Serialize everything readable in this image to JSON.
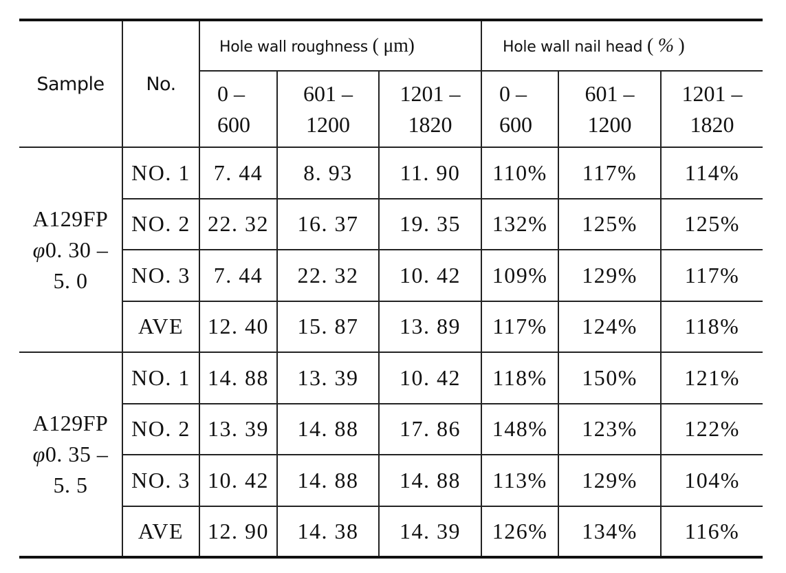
{
  "table": {
    "headers": {
      "sample": "Sample",
      "no": "No.",
      "roughness_group": "Hole wall roughness",
      "roughness_unit_open": "(",
      "roughness_unit": "μm)",
      "nailhead_group": "Hole wall nail head",
      "nailhead_unit_open": "(",
      "nailhead_unit": "%",
      "nailhead_unit_close": ")",
      "ranges": [
        {
          "top": "0 –",
          "bottom": "600"
        },
        {
          "top": "601 –",
          "bottom": "1200"
        },
        {
          "top": "1201 –",
          "bottom": "1820"
        },
        {
          "top": "0 –",
          "bottom": "600"
        },
        {
          "top": "601 –",
          "bottom": "1200"
        },
        {
          "top": "1201 –",
          "bottom": "1820"
        }
      ]
    },
    "groups": [
      {
        "sample_line1": "A129FP",
        "sample_phi": "φ",
        "sample_line2": "0. 30 –",
        "sample_line3": "5. 0",
        "rows": [
          {
            "no": "NO. 1",
            "values": [
              "7. 44",
              "8. 93",
              "11. 90",
              "110%",
              "117%",
              "114%"
            ]
          },
          {
            "no": "NO. 2",
            "values": [
              "22. 32",
              "16. 37",
              "19. 35",
              "132%",
              "125%",
              "125%"
            ]
          },
          {
            "no": "NO. 3",
            "values": [
              "7. 44",
              "22. 32",
              "10. 42",
              "109%",
              "129%",
              "117%"
            ]
          },
          {
            "no": "AVE",
            "values": [
              "12. 40",
              "15. 87",
              "13. 89",
              "117%",
              "124%",
              "118%"
            ]
          }
        ]
      },
      {
        "sample_line1": "A129FP",
        "sample_phi": "φ",
        "sample_line2": "0. 35 –",
        "sample_line3": "5. 5",
        "rows": [
          {
            "no": "NO. 1",
            "values": [
              "14. 88",
              "13. 39",
              "10. 42",
              "118%",
              "150%",
              "121%"
            ]
          },
          {
            "no": "NO. 2",
            "values": [
              "13. 39",
              "14. 88",
              "17. 86",
              "148%",
              "123%",
              "122%"
            ]
          },
          {
            "no": "NO. 3",
            "values": [
              "10. 42",
              "14. 88",
              "14. 88",
              "113%",
              "129%",
              "104%"
            ]
          },
          {
            "no": "AVE",
            "values": [
              "12. 90",
              "14. 38",
              "14. 39",
              "126%",
              "134%",
              "116%"
            ]
          }
        ]
      }
    ]
  }
}
